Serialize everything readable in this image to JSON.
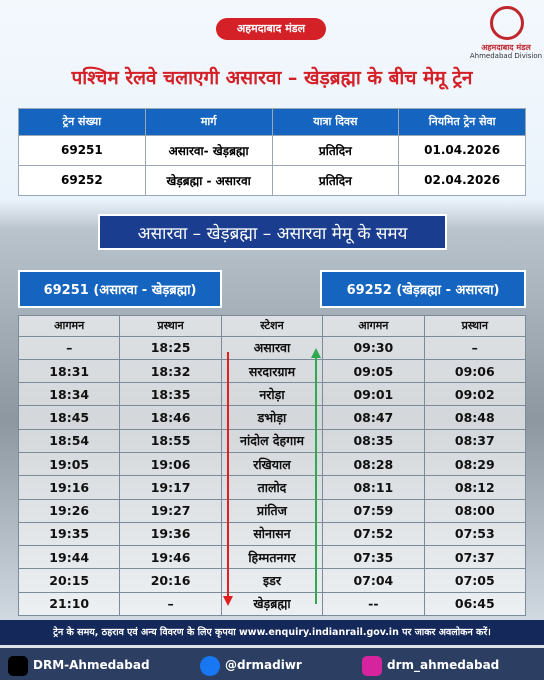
{
  "header": {
    "badge": "अहमदाबाद मंडल",
    "logo_hindi": "अहमदाबाद मंडल",
    "logo_english": "Ahmedabad Division",
    "title": "पश्चिम रेलवे चलाएगी असारवा – खेड़ब्रह्मा के बीच मेमू ट्रेन"
  },
  "table": {
    "rows": [
      [
        "ट्रेन संख्या",
        "मार्ग",
        "यात्रा दिवस",
        "नियमित ट्रेन सेवा"
      ],
      [
        "69251",
        "असारवा- खेड़ब्रह्मा",
        "प्रतिदिन",
        "01.04.2026"
      ],
      [
        "69252",
        "खेड़ब्रह्मा - असारवा",
        "प्रतिदिन",
        "02.04.2026"
      ]
    ]
  },
  "timing": {
    "title": "असारवा – खेड़ब्रह्मा – असारवा  मेमू के समय",
    "left_label": "69251 (असारवा - खेड़ब्रह्मा)",
    "right_label": "69252 (खेड़ब्रह्मा - असारवा)",
    "rows": [
      [
        "आगमन",
        "प्रस्थान",
        "स्टेशन",
        "आगमन",
        "प्रस्थान"
      ],
      [
        "–",
        "18:25",
        "असारवा",
        "09:30",
        "–"
      ],
      [
        "18:31",
        "18:32",
        "सरदारग्राम",
        "09:05",
        "09:06"
      ],
      [
        "18:34",
        "18:35",
        "नरोड़ा",
        "09:01",
        "09:02"
      ],
      [
        "18:45",
        "18:46",
        "डभोड़ा",
        "08:47",
        "08:48"
      ],
      [
        "18:54",
        "18:55",
        "नांदोल देहगाम",
        "08:35",
        "08:37"
      ],
      [
        "19:05",
        "19:06",
        "रखियाल",
        "08:28",
        "08:29"
      ],
      [
        "19:16",
        "19:17",
        "तालोद",
        "08:11",
        "08:12"
      ],
      [
        "19:26",
        "19:27",
        "प्रांतिज",
        "07:59",
        "08:00"
      ],
      [
        "19:35",
        "19:36",
        "सोनासन",
        "07:52",
        "07:53"
      ],
      [
        "19:44",
        "19:46",
        "हिम्मतनगर",
        "07:35",
        "07:37"
      ],
      [
        "20:15",
        "20:16",
        "इडर",
        "07:04",
        "07:05"
      ],
      [
        "21:10",
        "–",
        "खेड़ब्रह्मा",
        "--",
        "06:45"
      ]
    ]
  },
  "footer": {
    "note": "ट्रेन के समय, ठहराव एवं अन्य विवरण के लिए कृपया www.enquiry.indianrail.gov.in पर जाकर अवलोकन करें।",
    "social": [
      "DRM-Ahmedabad",
      "@drmadiwr",
      "drm_ahmedabad"
    ]
  }
}
